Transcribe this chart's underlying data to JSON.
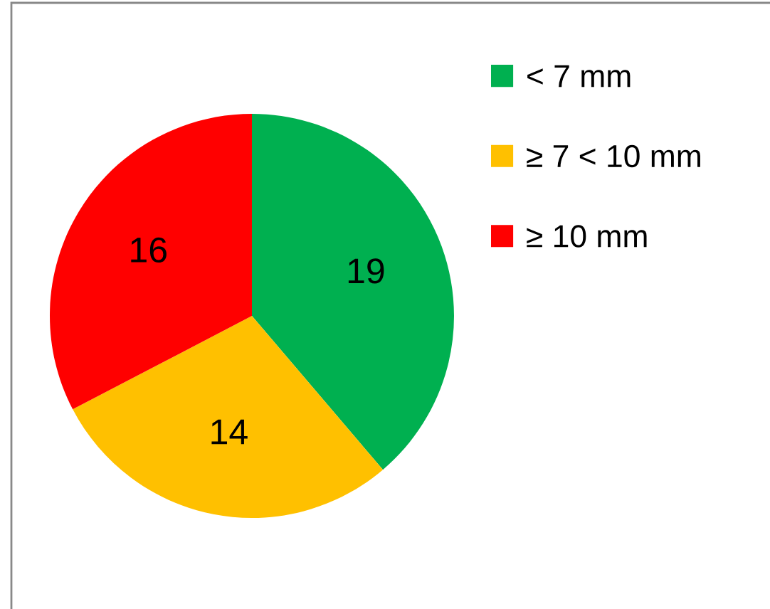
{
  "chart_data": {
    "type": "pie",
    "categories": [
      "< 7 mm",
      "≥ 7 < 10 mm",
      "≥ 10 mm"
    ],
    "values": [
      19,
      14,
      16
    ],
    "colors": [
      "#00b050",
      "#ffc000",
      "#ff0000"
    ],
    "data_labels": true,
    "legend": "top right"
  }
}
